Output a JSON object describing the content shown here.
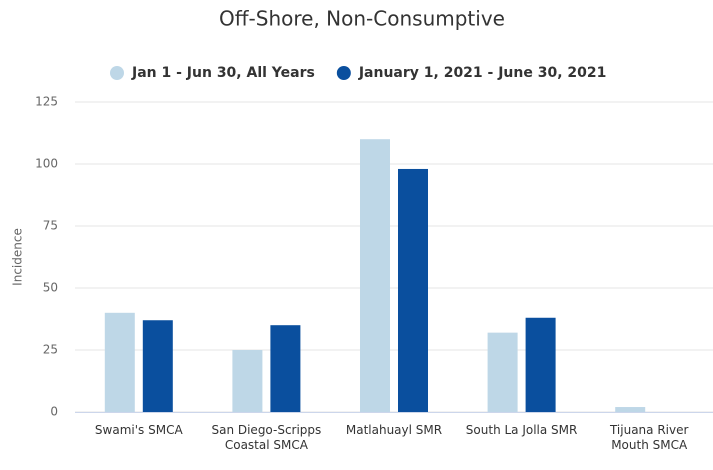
{
  "chart_data": {
    "type": "bar",
    "title": "Off-Shore, Non-Consumptive",
    "y_label": "Incidence",
    "categories": [
      "Swami's SMCA",
      "San Diego-Scripps Coastal SMCA",
      "Matlahuayl SMR",
      "South La Jolla SMR",
      "Tijuana River Mouth SMCA"
    ],
    "series": [
      {
        "name": "Jan 1 - Jun 30, All Years",
        "color": "#bed7e7",
        "values": [
          40,
          25,
          110,
          32,
          2
        ]
      },
      {
        "name": "January 1, 2021 - June 30, 2021",
        "color": "#0a4f9e",
        "values": [
          37,
          35,
          98,
          38,
          0
        ]
      }
    ],
    "ylim": [
      0,
      125
    ],
    "yticks": [
      0,
      25,
      50,
      75,
      100,
      125
    ],
    "grid": true,
    "legend": "top"
  }
}
